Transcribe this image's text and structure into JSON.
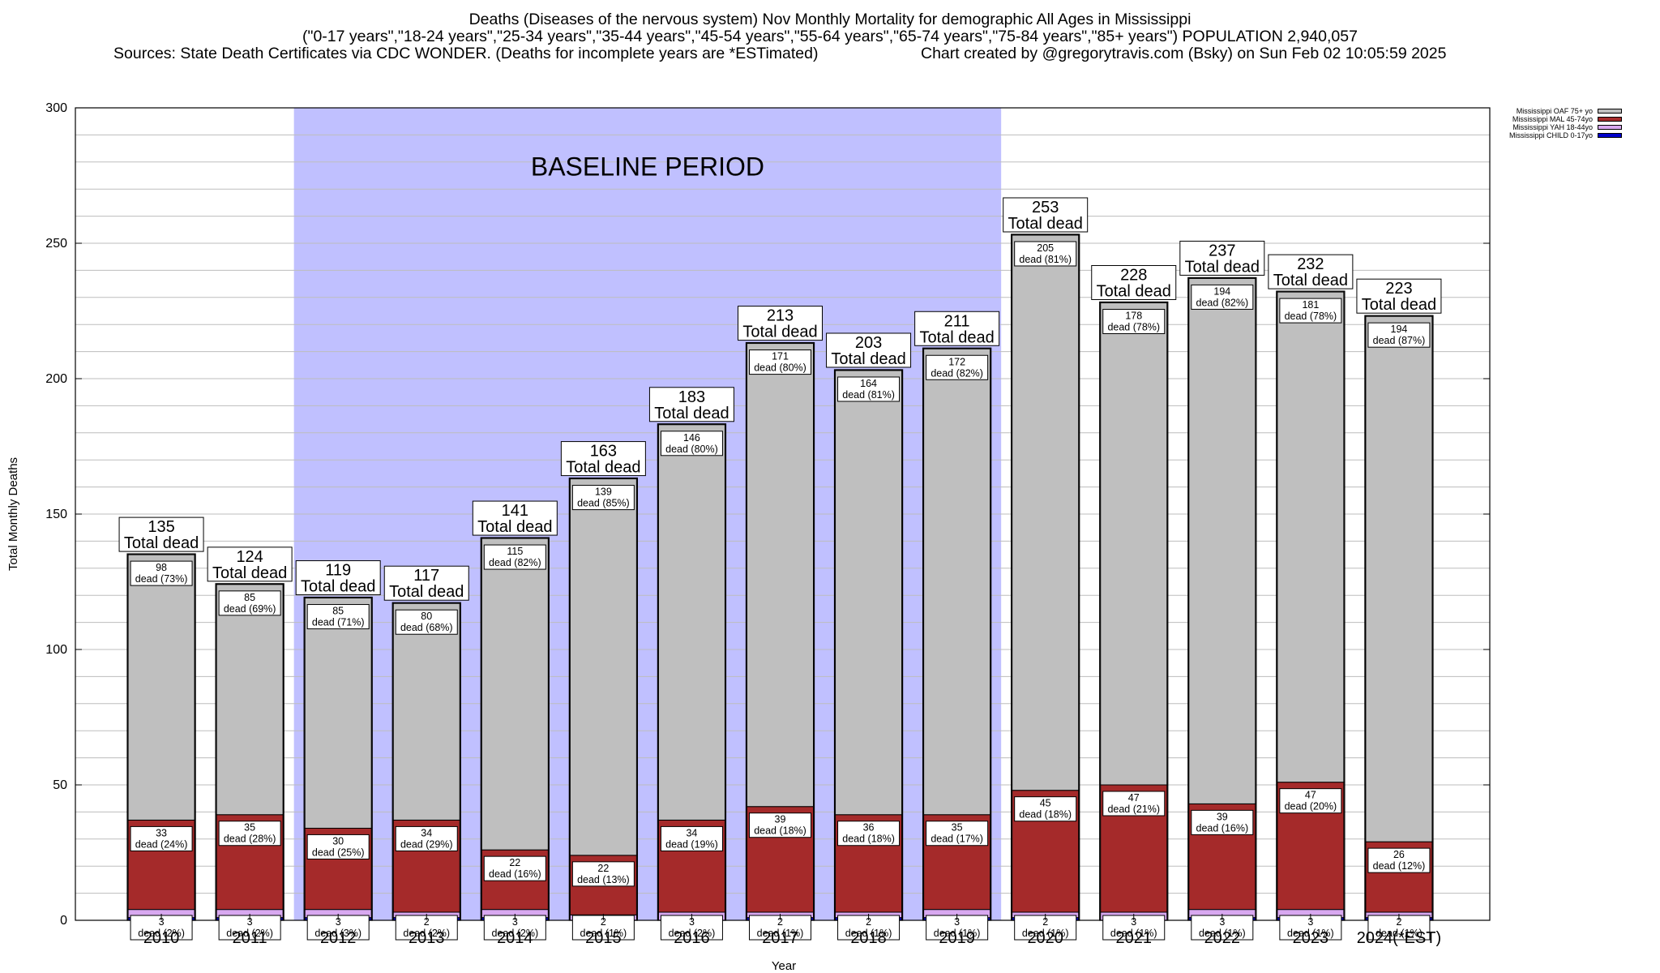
{
  "header": {
    "line1": "Deaths (Diseases of the nervous system) Nov Monthly Mortality for demographic All Ages in Mississippi",
    "line2": "(\"0-17 years\",\"18-24 years\",\"25-34 years\",\"35-44 years\",\"45-54 years\",\"55-64 years\",\"65-74 years\",\"75-84 years\",\"85+ years\") POPULATION 2,940,057",
    "sources_left": "Sources: State Death Certificates via CDC WONDER. (Deaths for incomplete years are *ESTimated)",
    "sources_right": "Chart created by @gregorytravis.com (Bsky) on Sun Feb 02 10:05:59 2025"
  },
  "legend": [
    {
      "label": "Mississippi OAF 75+ yo",
      "color": "#bfbfbf"
    },
    {
      "label": "Mississippi MAL 45-74yo",
      "color": "#a52a2a"
    },
    {
      "label": "Mississippi YAH 18-44yo",
      "color": "#d8a8f0"
    },
    {
      "label": "Mississippi CHILD 0-17yo",
      "color": "#0000cc"
    }
  ],
  "chart_data": {
    "type": "bar",
    "stacked": true,
    "xlabel": "Year",
    "ylabel": "Total Monthly Deaths",
    "ylim": [
      0,
      300
    ],
    "yticks": [
      0,
      50,
      100,
      150,
      200,
      250,
      300
    ],
    "baseline_label": "BASELINE PERIOD",
    "baseline_range": [
      "2012",
      "2019"
    ],
    "total_label_suffix": "Total dead",
    "categories": [
      "2010",
      "2011",
      "2012",
      "2013",
      "2014",
      "2015",
      "2016",
      "2017",
      "2018",
      "2019",
      "2020",
      "2021",
      "2022",
      "2023",
      "2024(*EST)"
    ],
    "totals": [
      135,
      124,
      119,
      117,
      141,
      163,
      183,
      213,
      203,
      211,
      253,
      228,
      237,
      232,
      223
    ],
    "series": [
      {
        "name": "Mississippi CHILD 0-17yo",
        "color": "#0000cc",
        "values": [
          1,
          1,
          1,
          1,
          1,
          0,
          0,
          1,
          1,
          1,
          1,
          0,
          1,
          1,
          1
        ]
      },
      {
        "name": "Mississippi YAH 18-44yo",
        "color": "#d8a8f0",
        "values": [
          3,
          3,
          3,
          2,
          3,
          2,
          3,
          2,
          2,
          3,
          2,
          3,
          3,
          3,
          2
        ]
      },
      {
        "name": "Mississippi MAL 45-74yo",
        "color": "#a52a2a",
        "values": [
          33,
          35,
          30,
          34,
          22,
          22,
          34,
          39,
          36,
          35,
          45,
          47,
          39,
          47,
          26
        ]
      },
      {
        "name": "Mississippi OAF 75+ yo",
        "color": "#bfbfbf",
        "values": [
          98,
          85,
          85,
          80,
          115,
          139,
          146,
          171,
          164,
          172,
          205,
          178,
          194,
          181,
          194
        ]
      }
    ],
    "segment_labels": {
      "oaf": [
        {
          "value": "98",
          "text": "dead (73%)"
        },
        {
          "value": "85",
          "text": "dead (69%)"
        },
        {
          "value": "85",
          "text": "dead (71%)"
        },
        {
          "value": "80",
          "text": "dead (68%)"
        },
        {
          "value": "115",
          "text": "dead (82%)"
        },
        {
          "value": "139",
          "text": "dead (85%)"
        },
        {
          "value": "146",
          "text": "dead (80%)"
        },
        {
          "value": "171",
          "text": "dead (80%)"
        },
        {
          "value": "164",
          "text": "dead (81%)"
        },
        {
          "value": "172",
          "text": "dead (82%)"
        },
        {
          "value": "205",
          "text": "dead (81%)"
        },
        {
          "value": "178",
          "text": "dead (78%)"
        },
        {
          "value": "194",
          "text": "dead (82%)"
        },
        {
          "value": "181",
          "text": "dead (78%)"
        },
        {
          "value": "194",
          "text": "dead (87%)"
        }
      ],
      "mal": [
        {
          "value": "33",
          "text": "dead (24%)"
        },
        {
          "value": "35",
          "text": "dead (28%)"
        },
        {
          "value": "30",
          "text": "dead (25%)"
        },
        {
          "value": "34",
          "text": "dead (29%)"
        },
        {
          "value": "22",
          "text": "dead (16%)"
        },
        {
          "value": "22",
          "text": "dead (13%)"
        },
        {
          "value": "34",
          "text": "dead (19%)"
        },
        {
          "value": "39",
          "text": "dead (18%)"
        },
        {
          "value": "36",
          "text": "dead (18%)"
        },
        {
          "value": "35",
          "text": "dead (17%)"
        },
        {
          "value": "45",
          "text": "dead (18%)"
        },
        {
          "value": "47",
          "text": "dead (21%)"
        },
        {
          "value": "39",
          "text": "dead (16%)"
        },
        {
          "value": "47",
          "text": "dead (20%)"
        },
        {
          "value": "26",
          "text": "dead (12%)"
        }
      ],
      "yah": [
        {
          "value": "3",
          "text": "dead (2%)"
        },
        {
          "value": "3",
          "text": "dead (2%)"
        },
        {
          "value": "3",
          "text": "dead (3%)"
        },
        {
          "value": "2",
          "text": "dead (2%)"
        },
        {
          "value": "3",
          "text": "dead (2%)"
        },
        {
          "value": "2",
          "text": "dead (1%)"
        },
        {
          "value": "3",
          "text": "dead (2%)"
        },
        {
          "value": "2",
          "text": "dead (1%)"
        },
        {
          "value": "2",
          "text": "dead (1%)"
        },
        {
          "value": "3",
          "text": "dead (1%)"
        },
        {
          "value": "2",
          "text": "dead (1%)"
        },
        {
          "value": "3",
          "text": "dead (1%)"
        },
        {
          "value": "3",
          "text": "dead (1%)"
        },
        {
          "value": "3",
          "text": "dead (1%)"
        },
        {
          "value": "2",
          "text": "dead (1%)"
        }
      ]
    }
  }
}
